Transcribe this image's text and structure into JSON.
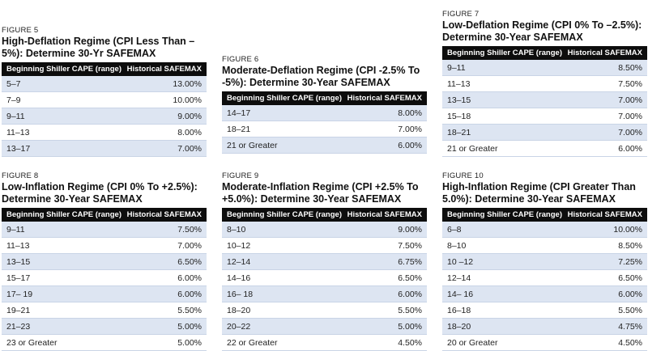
{
  "columns": [
    "Beginning Shiller CAPE (range)",
    "Historical SAFEMAX"
  ],
  "figures": [
    {
      "label": "FIGURE 5",
      "title": "High-Deflation Regime (CPI Less Than –5%): Determine 30-Yr SAFEMAX",
      "rows": [
        [
          "5–7",
          "13.00%"
        ],
        [
          "7–9",
          "10.00%"
        ],
        [
          "9–11",
          "9.00%"
        ],
        [
          "11–13",
          "8.00%"
        ],
        [
          "13–17",
          "7.00%"
        ]
      ]
    },
    {
      "label": "FIGURE 6",
      "title": "Moderate-Deflation Regime (CPI -2.5% To -5%): Determine 30-Year SAFEMAX",
      "rows": [
        [
          "14–17",
          "8.00%"
        ],
        [
          "18–21",
          "7.00%"
        ],
        [
          "21 or Greater",
          "6.00%"
        ]
      ]
    },
    {
      "label": "FIGURE 7",
      "title": "Low-Deflation Regime (CPI 0% To –2.5%): Determine 30-Year SAFEMAX",
      "rows": [
        [
          "9–11",
          "8.50%"
        ],
        [
          "11–13",
          "7.50%"
        ],
        [
          "13–15",
          "7.00%"
        ],
        [
          "15–18",
          "7.00%"
        ],
        [
          "18–21",
          "7.00%"
        ],
        [
          "21 or Greater",
          "6.00%"
        ]
      ]
    },
    {
      "label": "FIGURE 8",
      "title": "Low-Inflation Regime (CPI 0% To +2.5%): Determine 30-Year SAFEMAX",
      "rows": [
        [
          "9–11",
          "7.50%"
        ],
        [
          "11–13",
          "7.00%"
        ],
        [
          "13–15",
          "6.50%"
        ],
        [
          "15–17",
          "6.00%"
        ],
        [
          "17– 19",
          "6.00%"
        ],
        [
          "19–21",
          "5.50%"
        ],
        [
          "21–23",
          "5.00%"
        ],
        [
          "23 or Greater",
          "5.00%"
        ]
      ]
    },
    {
      "label": "FIGURE 9",
      "title": "Moderate-Inflation Regime (CPI +2.5% To +5.0%): Determine 30-Year SAFEMAX",
      "rows": [
        [
          "8–10",
          "9.00%"
        ],
        [
          "10–12",
          "7.50%"
        ],
        [
          "12–14",
          "6.75%"
        ],
        [
          "14–16",
          "6.50%"
        ],
        [
          "16– 18",
          "6.00%"
        ],
        [
          "18–20",
          "5.50%"
        ],
        [
          "20–22",
          "5.00%"
        ],
        [
          "22 or Greater",
          "4.50%"
        ]
      ]
    },
    {
      "label": "FIGURE 10",
      "title": "High-Inflation Regime (CPI Greater Than 5.0%): Determine 30-Year SAFEMAX",
      "rows": [
        [
          "6–8",
          "10.00%"
        ],
        [
          "8–10",
          "8.50%"
        ],
        [
          "10 –12",
          "7.25%"
        ],
        [
          "12–14",
          "6.50%"
        ],
        [
          "14– 16",
          "6.00%"
        ],
        [
          "16–18",
          "5.50%"
        ],
        [
          "18–20",
          "4.75%"
        ],
        [
          "20 or Greater",
          "4.50%"
        ]
      ]
    }
  ]
}
